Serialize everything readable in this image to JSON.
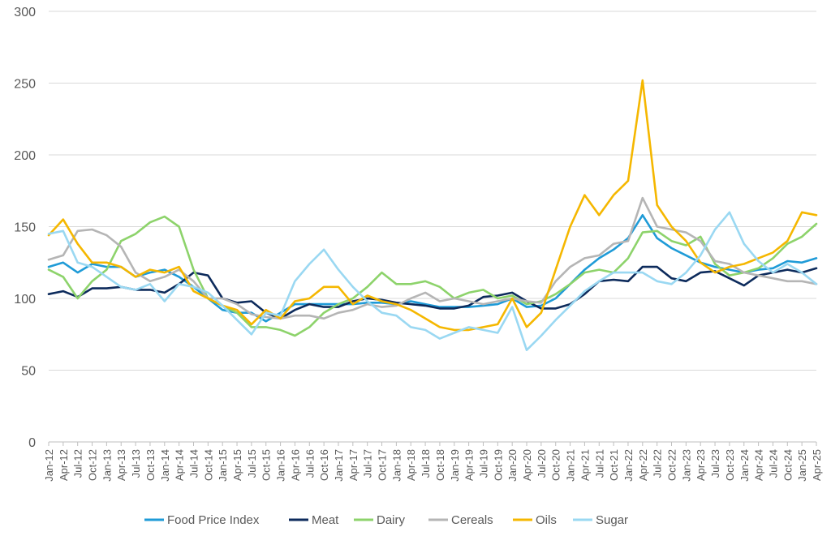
{
  "chart_data": {
    "type": "line",
    "title": "",
    "xlabel": "",
    "ylabel": "",
    "ylim": [
      0,
      300
    ],
    "yticks": [
      0,
      50,
      100,
      150,
      200,
      250,
      300
    ],
    "grid": "horizontal",
    "legend": "bottom",
    "categories": [
      "Jan-12",
      "Apr-12",
      "Jul-12",
      "Oct-12",
      "Jan-13",
      "Apr-13",
      "Jul-13",
      "Oct-13",
      "Jan-14",
      "Apr-14",
      "Jul-14",
      "Oct-14",
      "Jan-15",
      "Apr-15",
      "Jul-15",
      "Oct-15",
      "Jan-16",
      "Apr-16",
      "Jul-16",
      "Oct-16",
      "Jan-17",
      "Apr-17",
      "Jul-17",
      "Oct-17",
      "Jan-18",
      "Apr-18",
      "Jul-18",
      "Oct-18",
      "Jan-19",
      "Apr-19",
      "Jul-19",
      "Oct-19",
      "Jan-20",
      "Apr-20",
      "Jul-20",
      "Oct-20",
      "Jan-21",
      "Apr-21",
      "Jul-21",
      "Oct-21",
      "Jan-22",
      "Apr-22",
      "Jul-22",
      "Oct-22",
      "Jan-23",
      "Apr-23",
      "Jul-23",
      "Oct-23",
      "Jan-24",
      "Apr-24",
      "Jul-24",
      "Oct-24",
      "Jan-25",
      "Apr-25"
    ],
    "series": [
      {
        "name": "Food Price Index",
        "color": "#1f9bd7",
        "values": [
          122,
          125,
          118,
          124,
          122,
          122,
          115,
          118,
          120,
          115,
          108,
          100,
          92,
          90,
          90,
          84,
          90,
          96,
          96,
          96,
          96,
          96,
          97,
          97,
          96,
          98,
          96,
          94,
          94,
          94,
          95,
          96,
          100,
          94,
          95,
          100,
          110,
          120,
          128,
          134,
          142,
          158,
          142,
          135,
          130,
          125,
          122,
          120,
          118,
          120,
          121,
          126,
          125,
          128
        ]
      },
      {
        "name": "Meat",
        "color": "#0d2b5c",
        "values": [
          103,
          105,
          101,
          107,
          107,
          108,
          106,
          106,
          104,
          110,
          118,
          116,
          100,
          97,
          98,
          90,
          86,
          92,
          96,
          94,
          94,
          98,
          100,
          99,
          97,
          96,
          95,
          93,
          93,
          95,
          101,
          102,
          104,
          98,
          93,
          93,
          96,
          103,
          112,
          113,
          112,
          122,
          122,
          114,
          112,
          118,
          119,
          114,
          109,
          116,
          118,
          120,
          118,
          121
        ]
      },
      {
        "name": "Dairy",
        "color": "#8dd36b",
        "values": [
          120,
          115,
          100,
          112,
          120,
          140,
          145,
          153,
          157,
          150,
          120,
          100,
          95,
          90,
          80,
          80,
          78,
          74,
          80,
          90,
          96,
          100,
          108,
          118,
          110,
          110,
          112,
          108,
          100,
          104,
          106,
          100,
          102,
          96,
          98,
          103,
          110,
          118,
          120,
          118,
          128,
          146,
          147,
          140,
          137,
          143,
          124,
          116,
          118,
          121,
          128,
          138,
          143,
          152
        ]
      },
      {
        "name": "Cereals",
        "color": "#b5b5b5",
        "values": [
          127,
          130,
          147,
          148,
          144,
          136,
          118,
          112,
          115,
          120,
          112,
          100,
          100,
          96,
          89,
          87,
          86,
          88,
          88,
          86,
          90,
          92,
          96,
          94,
          95,
          100,
          104,
          98,
          100,
          98,
          96,
          98,
          100,
          98,
          97,
          112,
          122,
          128,
          130,
          138,
          140,
          170,
          150,
          148,
          146,
          140,
          126,
          124,
          118,
          116,
          114,
          112,
          112,
          110
        ]
      },
      {
        "name": "Oils",
        "color": "#f5b700",
        "values": [
          144,
          155,
          138,
          125,
          125,
          122,
          115,
          120,
          118,
          122,
          105,
          100,
          95,
          92,
          82,
          92,
          86,
          98,
          100,
          108,
          108,
          96,
          102,
          98,
          96,
          92,
          86,
          80,
          78,
          78,
          80,
          82,
          100,
          80,
          90,
          120,
          150,
          172,
          158,
          172,
          182,
          252,
          165,
          150,
          140,
          125,
          118,
          122,
          124,
          128,
          132,
          140,
          160,
          158
        ]
      },
      {
        "name": "Sugar",
        "color": "#9ad8f2",
        "values": [
          145,
          147,
          125,
          122,
          115,
          108,
          106,
          110,
          98,
          110,
          108,
          104,
          95,
          85,
          75,
          90,
          88,
          112,
          124,
          134,
          120,
          108,
          98,
          90,
          88,
          80,
          78,
          72,
          76,
          80,
          78,
          76,
          94,
          64,
          74,
          85,
          95,
          105,
          112,
          118,
          118,
          118,
          112,
          110,
          118,
          130,
          148,
          160,
          138,
          126,
          118,
          124,
          118,
          110
        ]
      }
    ]
  }
}
